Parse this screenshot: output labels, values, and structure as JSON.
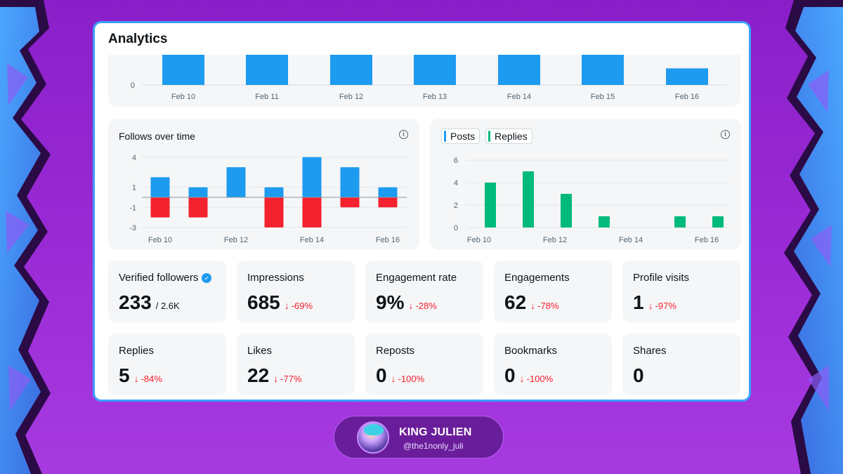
{
  "card": {
    "title": "Analytics"
  },
  "top_chart": {
    "zero_label": "0",
    "dates": [
      "Feb 10",
      "Feb 11",
      "Feb 12",
      "Feb 13",
      "Feb 14",
      "Feb 15",
      "Feb 16"
    ],
    "bar_color": "#1d9bf0"
  },
  "follows_chart": {
    "title": "Follows over time",
    "y_ticks": [
      "4",
      "1",
      "-1",
      "-3"
    ],
    "x_labels": [
      "Feb 10",
      "Feb 12",
      "Feb 14",
      "Feb 16"
    ],
    "dates": [
      "Feb 10",
      "Feb 11",
      "Feb 12",
      "Feb 13",
      "Feb 14",
      "Feb 15",
      "Feb 16"
    ],
    "colors": {
      "follows": "#1d9bf0",
      "unfollows": "#f4212e"
    }
  },
  "posts_chart": {
    "legend": {
      "posts": "Posts",
      "replies": "Replies"
    },
    "y_ticks": [
      "6",
      "4",
      "2",
      "0"
    ],
    "x_labels": [
      "Feb 10",
      "Feb 12",
      "Feb 14",
      "Feb 16"
    ],
    "colors": {
      "posts": "#1d9bf0",
      "replies": "#00ba7c"
    }
  },
  "chart_data": [
    {
      "type": "bar",
      "categories": [
        "Feb 10",
        "Feb 11",
        "Feb 12",
        "Feb 13",
        "Feb 14",
        "Feb 15",
        "Feb 16"
      ],
      "values": [
        1.0,
        1.0,
        1.0,
        1.0,
        1.0,
        1.0,
        0.55
      ],
      "ylim": [
        0,
        1
      ]
    },
    {
      "type": "bar",
      "title": "Follows over time",
      "categories": [
        "Feb 10",
        "Feb 11",
        "Feb 12",
        "Feb 13",
        "Feb 14",
        "Feb 15",
        "Feb 16"
      ],
      "series": [
        {
          "values": [
            2,
            1,
            3,
            1,
            4,
            3,
            1
          ]
        },
        {
          "values": [
            -2,
            -2,
            0,
            -3,
            -3,
            -1,
            -1
          ]
        }
      ],
      "ylim": [
        -3,
        4
      ]
    },
    {
      "type": "bar",
      "categories": [
        "Feb 10",
        "Feb 11",
        "Feb 12",
        "Feb 13",
        "Feb 14",
        "Feb 15",
        "Feb 16"
      ],
      "series": [
        {
          "name": "Replies",
          "values": [
            4,
            5,
            3,
            1,
            0,
            1,
            1
          ]
        }
      ],
      "ylim": [
        0,
        6
      ]
    }
  ],
  "stats": [
    {
      "label": "Verified followers",
      "value": "233",
      "sub": "/ 2.6K",
      "change": "",
      "verified": true
    },
    {
      "label": "Impressions",
      "value": "685",
      "sub": "",
      "change": "-69%"
    },
    {
      "label": "Engagement rate",
      "value": "9%",
      "sub": "",
      "change": "-28%"
    },
    {
      "label": "Engagements",
      "value": "62",
      "sub": "",
      "change": "-78%"
    },
    {
      "label": "Profile visits",
      "value": "1",
      "sub": "",
      "change": "-97%"
    },
    {
      "label": "Replies",
      "value": "5",
      "sub": "",
      "change": "-84%"
    },
    {
      "label": "Likes",
      "value": "22",
      "sub": "",
      "change": "-77%"
    },
    {
      "label": "Reposts",
      "value": "0",
      "sub": "",
      "change": "-100%"
    },
    {
      "label": "Bookmarks",
      "value": "0",
      "sub": "",
      "change": "-100%"
    },
    {
      "label": "Shares",
      "value": "0",
      "sub": "",
      "change": ""
    }
  ],
  "icons": {
    "info": "info-icon",
    "verified": "verified-badge-icon",
    "down": "arrow-down-icon"
  },
  "profile": {
    "name": "KING JULIEN",
    "handle": "@the1nonly_juli"
  }
}
